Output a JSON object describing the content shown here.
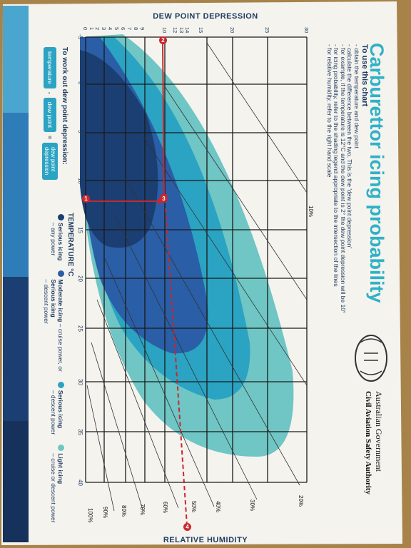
{
  "card": {
    "title": "Carburettor icing probability",
    "top_axis_title": "DEW POINT DEPRESSION",
    "bottom_axis_title": "RELATIVE HUMIDITY"
  },
  "instructions": {
    "heading": "To use this chart",
    "lines": [
      "- obtain the temperature and dew point",
      "- calculate the difference between the two. This is the 'dew point depression'",
      "- for example, if the temperature is 12°C and the dew point is 2° the dew point depression will be 10°",
      "- for icing probability, refer to the shading legend appropriate to the intersection of the lines",
      "- for relative humidity, refer to the right hand scale"
    ]
  },
  "formula": {
    "heading": "To work out dew point depression:",
    "term_a": "temperature",
    "minus": "-",
    "term_b": "dew point",
    "equals": "=",
    "result": "dew point depression"
  },
  "legend": {
    "axis_title": "TEMPERATURE °C",
    "items": [
      {
        "label": "Serious icing",
        "sub": "– any power",
        "color": "#1b3f73"
      },
      {
        "label": "Moderate icing",
        "sub": "– cruise power, or",
        "label2": "Serious icing",
        "sub2": "– descent power",
        "color": "#2a5ea6"
      },
      {
        "label": "Serious icing",
        "sub": "– descent power",
        "color": "#2ba3c2"
      },
      {
        "label": "Light icing",
        "sub": "– cruise or descent power",
        "color": "#6fc6c4"
      }
    ]
  },
  "agency": {
    "line1": "Australian Government",
    "line2": "Civil Aviation Safety Authority"
  },
  "temperature_ticks": [
    "-5",
    "0",
    "5",
    "10",
    "15",
    "20",
    "25",
    "30",
    "35",
    "40"
  ],
  "dew_point_ticks": [
    "0",
    "1",
    "2",
    "3",
    "4",
    "5",
    "6",
    "7",
    "8",
    "9",
    "10",
    "12",
    "13",
    "14",
    "15",
    "20",
    "25",
    "30"
  ],
  "humidity_ticks": [
    "100%",
    "90%",
    "80%",
    "70%",
    "60%",
    "50%",
    "40%",
    "30%",
    "20%",
    "10%"
  ],
  "markers": [
    "1",
    "2",
    "3",
    "4"
  ],
  "colors": {
    "card": "#f4f3ee",
    "table": "#b08a4e",
    "navy": "#1b3f73",
    "blue": "#2a5ea6",
    "teal": "#2ba3c2",
    "light_teal": "#6fc6c4",
    "red": "#c8282e",
    "title_teal": "#2fb1c7"
  }
}
